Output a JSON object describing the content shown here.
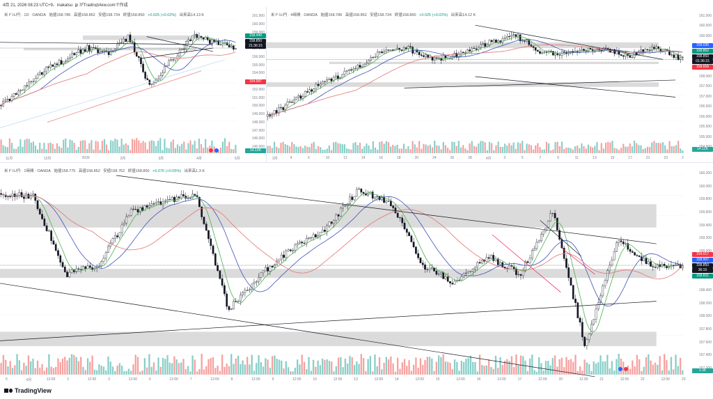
{
  "header": {
    "text": "4月 21, 2026 08:23 UTC+9、inakatsu_jp がTradingView.comで作成"
  },
  "panels": [
    {
      "id": "daily",
      "legend": {
        "symbol": "米ドル/円 · 1D · OANDA",
        "open": "始値158.786",
        "high": "高値158.852",
        "low": "安値158.734",
        "close": "終値158.850",
        "change": "+0.025 (+0.02%)",
        "volume": "出来高14.13 K"
      },
      "price_scale": [
        "161.000",
        "160.000",
        "159.000",
        "158.000",
        "157.000",
        "156.000",
        "155.000",
        "154.000",
        "153.000",
        "152.000",
        "151.000",
        "150.000",
        "149.000",
        "148.000",
        "147.000",
        "146.000",
        "145.000"
      ],
      "tags": [
        {
          "text": "158.449",
          "color": "#089981"
        },
        {
          "text": "158.850",
          "color": "#131722"
        },
        {
          "text": "21:36:15",
          "color": "#131722"
        },
        {
          "text": "154.587",
          "color": "#f23645"
        },
        {
          "text": "14.13K",
          "color": "#26a69a"
        }
      ],
      "x_labels": [
        "11月",
        "12月",
        "2026",
        "2月",
        "3月",
        "4月",
        "5月"
      ]
    },
    {
      "id": "h4",
      "legend": {
        "symbol": "米ドル/円 · 4時間 · OANDA",
        "open": "始値158.786",
        "high": "高値158.852",
        "low": "安値158.734",
        "close": "終値158.850",
        "change": "+0.025 (+0.02%)",
        "volume": "出来高14.12 K"
      },
      "price_scale": [
        "161.000",
        "160.500",
        "160.000",
        "159.500",
        "159.000",
        "158.500",
        "158.000",
        "157.500",
        "157.000",
        "156.500",
        "156.000",
        "155.500",
        "155.000",
        "154.500"
      ],
      "tags": [
        {
          "text": "159.035",
          "color": "#2962ff"
        },
        {
          "text": "158.862",
          "color": "#089981"
        },
        {
          "text": "158.850",
          "color": "#131722"
        },
        {
          "text": "01:36:15",
          "color": "#131722"
        },
        {
          "text": "158.608",
          "color": "#f23645"
        },
        {
          "text": "14.12K",
          "color": "#26a69a"
        }
      ],
      "x_labels": [
        "3月",
        "4",
        "6",
        "10",
        "12",
        "14",
        "16",
        "18",
        "20",
        "24",
        "26",
        "28",
        "4月",
        "3",
        "5",
        "7",
        "9",
        "11",
        "13",
        "15",
        "17",
        "21",
        "23",
        "2"
      ]
    },
    {
      "id": "h1",
      "legend": {
        "symbol": "米ドル/円 · 1時間 · OANDA",
        "open": "始値158.775",
        "high": "高値158.852",
        "low": "安値158.762",
        "close": "終値158.850",
        "change": "+0.076 (+0.05%)",
        "volume": "出来高1.3 K"
      },
      "price_scale": [
        "160.200",
        "160.000",
        "159.800",
        "159.600",
        "159.400",
        "159.200",
        "159.000",
        "158.800",
        "158.600",
        "158.400",
        "158.200",
        "158.000",
        "157.800",
        "157.600",
        "157.400",
        "157.200"
      ],
      "tags": [
        {
          "text": "159.017",
          "color": "#f23645"
        },
        {
          "text": "158.907",
          "color": "#2962ff"
        },
        {
          "text": "158.850",
          "color": "#131722"
        },
        {
          "text": "36:15",
          "color": "#131722"
        },
        {
          "text": "158.831",
          "color": "#089981"
        },
        {
          "text": "1.3K",
          "color": "#26a69a"
        }
      ],
      "x_labels": [
        "5",
        "4月",
        "12:00",
        "2",
        "12:00",
        "3",
        "12:00",
        "6",
        "12:00",
        "7",
        "12:00",
        "8",
        "12:00",
        "9",
        "12:00",
        "10",
        "12:00",
        "13",
        "12:00",
        "14",
        "12:00",
        "15",
        "12:00",
        "16",
        "12:00",
        "17",
        "12:00",
        "20",
        "12:00",
        "21",
        "12:00",
        "22",
        "12:00",
        "23"
      ]
    }
  ],
  "brand": {
    "name": "TradingView"
  },
  "colors": {
    "up": "#26a69a",
    "down": "#ef5350",
    "ma_fast": "#4caf50",
    "ma_mid": "#3f51b5",
    "ma_slow": "#e57373",
    "zone": "#cfcfcf",
    "pattern": "#e91e63"
  }
}
